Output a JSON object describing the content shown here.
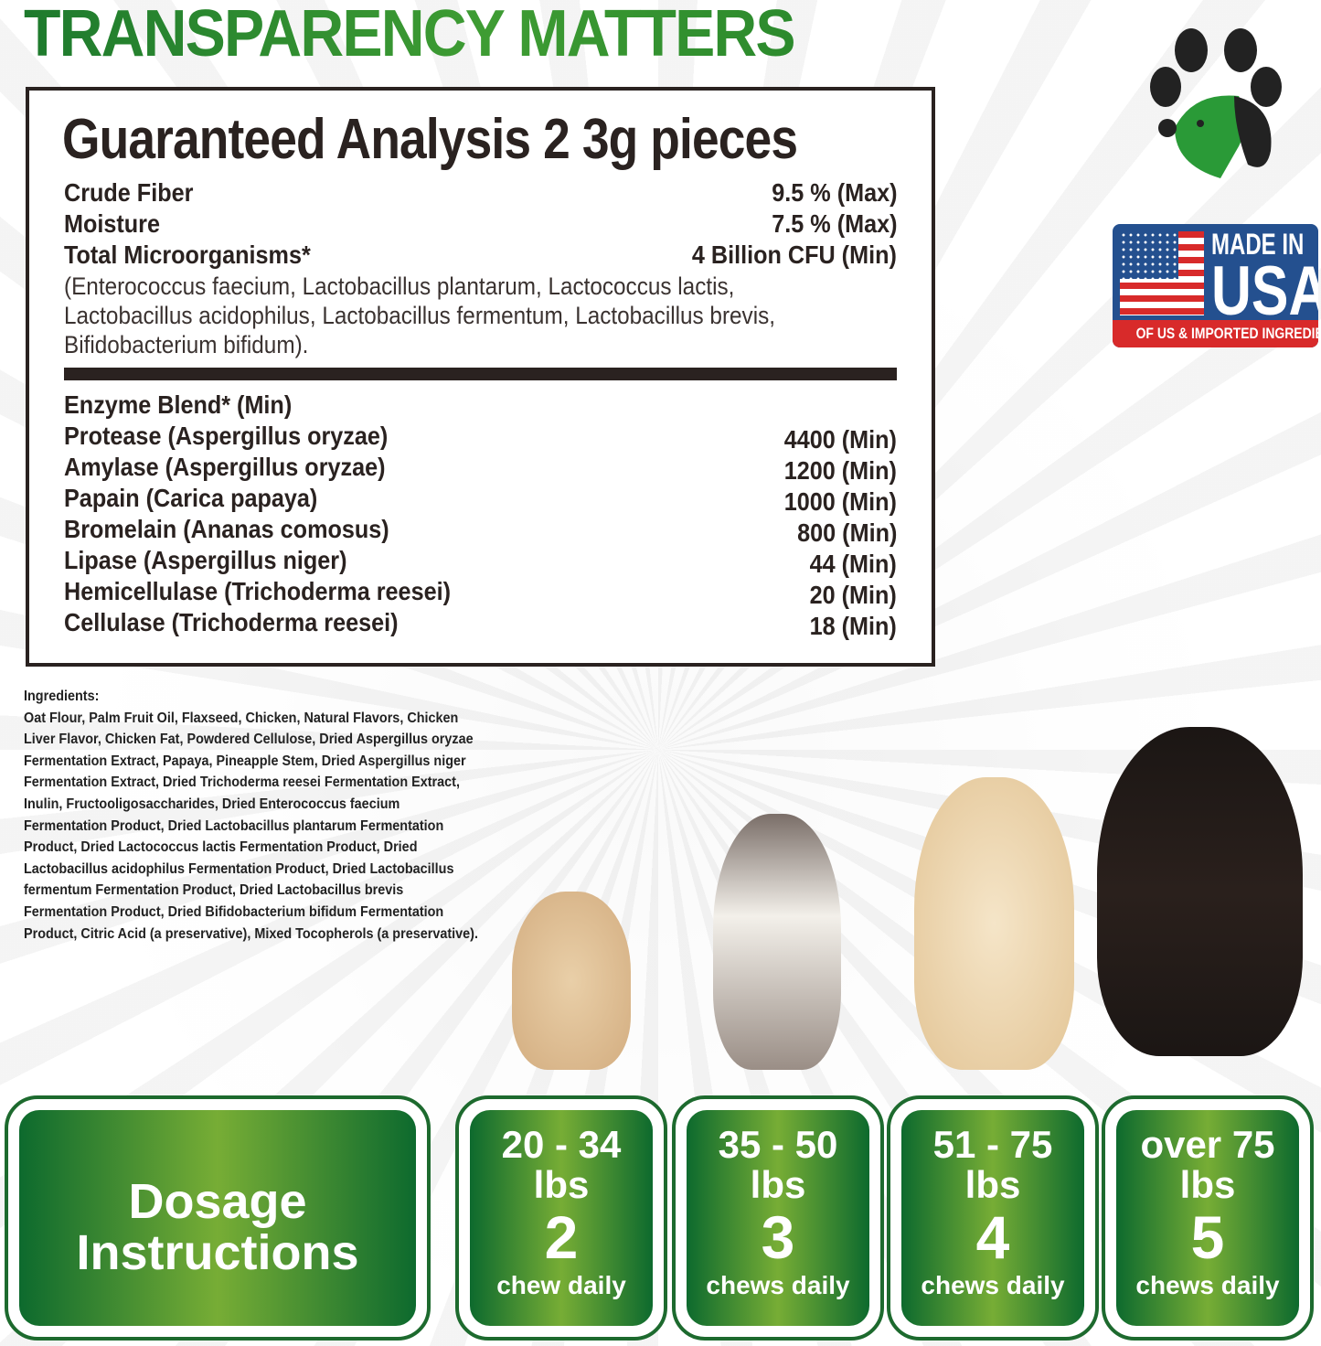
{
  "title": "TRANSPARENCY MATTERS",
  "analysis": {
    "heading": "Guaranteed Analysis 2 3g pieces",
    "rows": [
      {
        "label": "Crude Fiber",
        "value": "9.5 % (Max)"
      },
      {
        "label": "Moisture",
        "value": "7.5 % (Max)"
      },
      {
        "label": "Total Microorganisms*",
        "value": "4 Billion CFU (Min)"
      }
    ],
    "organisms_note": "(Enterococcus faecium, Lactobacillus plantarum, Lactococcus lactis, Lactobacillus acidophilus, Lactobacillus fermentum, Lactobacillus brevis, Bifidobacterium bifidum).",
    "enzyme_heading": "Enzyme Blend* (Min)",
    "enzymes": [
      {
        "label": "Protease (Aspergillus oryzae)",
        "value": "4400 (Min)"
      },
      {
        "label": "Amylase (Aspergillus oryzae)",
        "value": "1200 (Min)"
      },
      {
        "label": "Papain (Carica papaya)",
        "value": "1000 (Min)"
      },
      {
        "label": "Bromelain (Ananas comosus)",
        "value": "800 (Min)"
      },
      {
        "label": "Lipase (Aspergillus niger)",
        "value": "44 (Min)"
      },
      {
        "label": "Hemicellulase (Trichoderma reesei)",
        "value": "20 (Min)"
      },
      {
        "label": "Cellulase (Trichoderma reesei)",
        "value": "18 (Min)"
      }
    ]
  },
  "ingredients": {
    "heading": "Ingredients:",
    "text": "Oat Flour, Palm Fruit Oil, Flaxseed, Chicken, Natural Flavors, Chicken Liver Flavor, Chicken Fat, Powdered Cellulose, Dried Aspergillus oryzae Fermentation Extract, Papaya, Pineapple Stem, Dried Aspergillus niger Fermentation Extract, Dried Trichoderma reesei Fermentation Extract, Inulin, Fructooligosaccharides, Dried Enterococcus faecium Fermentation Product, Dried Lactobacillus plantarum Fermentation Product, Dried Lactococcus lactis Fermentation Product, Dried Lactobacillus acidophilus Fermentation Product, Dried Lactobacillus fermentum Fermentation Product, Dried Lactobacillus brevis Fermentation Product, Dried Bifidobacterium bifidum Fermentation Product, Citric Acid (a preservative), Mixed Tocopherols (a preservative)."
  },
  "badge": {
    "line1": "MADE IN",
    "line2": "USA",
    "line3": "OF US & IMPORTED INGREDIENTS"
  },
  "logo_icon": "paw-dog-icon",
  "colors": {
    "brand_green": "#1e7a2d",
    "dosage_green": "#0d6a2e"
  },
  "dosage": {
    "heading_line1": "Dosage",
    "heading_line2": "Instructions",
    "items": [
      {
        "range": "20 - 34",
        "unit": "lbs",
        "count": "2",
        "label": "chew daily"
      },
      {
        "range": "35 - 50",
        "unit": "lbs",
        "count": "3",
        "label": "chews daily"
      },
      {
        "range": "51 - 75",
        "unit": "lbs",
        "count": "4",
        "label": "chews daily"
      },
      {
        "range": "over 75",
        "unit": "lbs",
        "count": "5",
        "label": "chews daily"
      }
    ]
  }
}
